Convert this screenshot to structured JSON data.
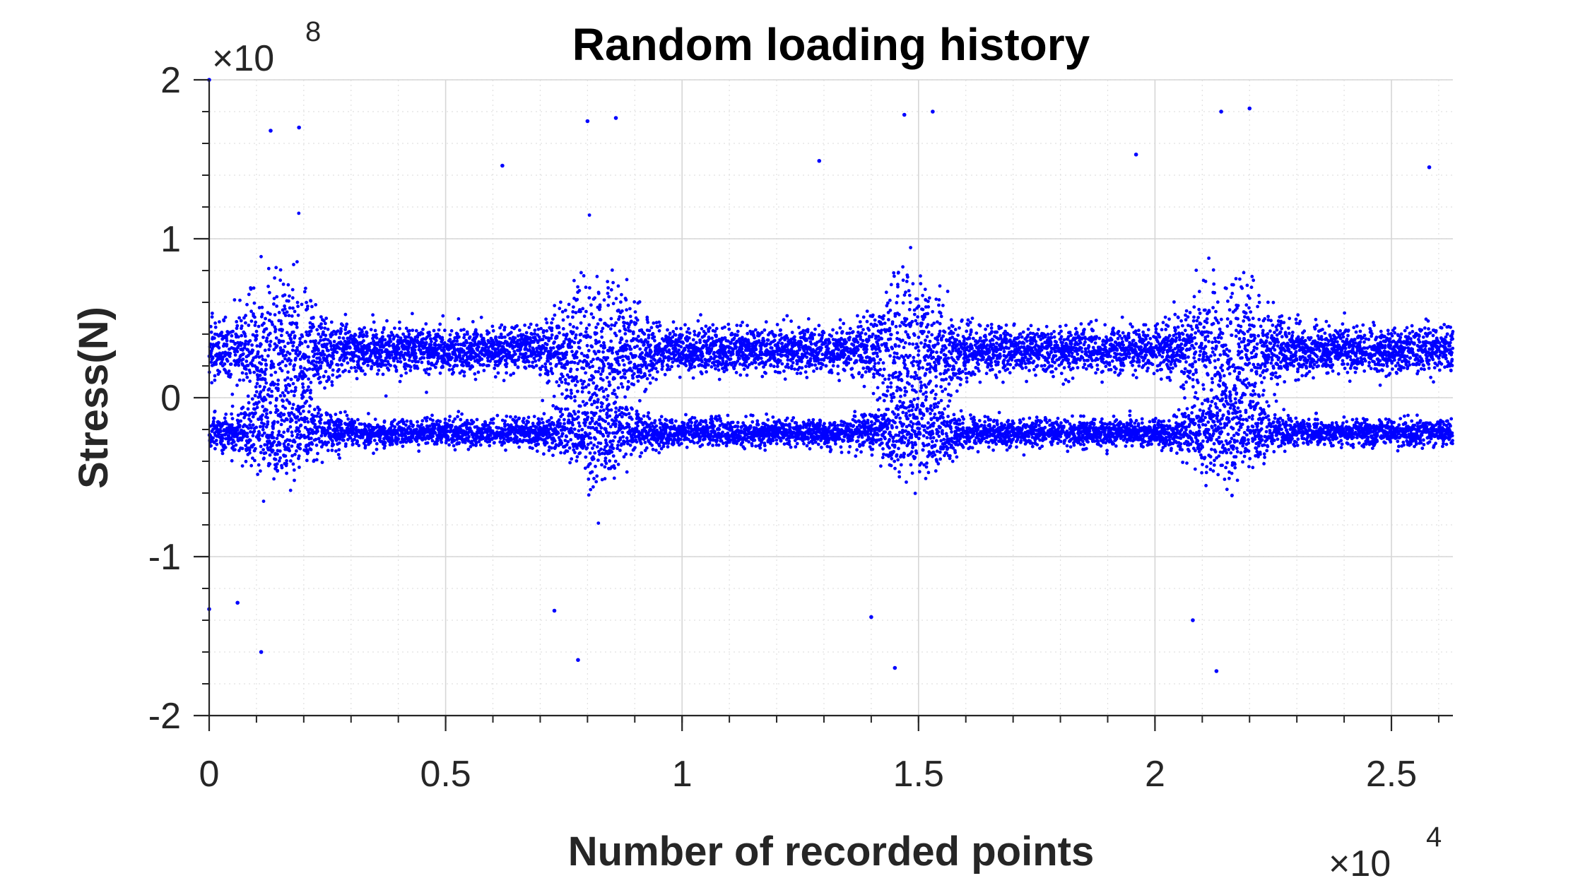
{
  "chart_data": {
    "type": "scatter",
    "title": "Random loading history",
    "xlabel": "Number of recorded points",
    "ylabel": "Stress(N)",
    "x_exponent_label": "×10",
    "x_exponent_power": "4",
    "y_exponent_label": "×10",
    "y_exponent_power": "8",
    "xlim": [
      0,
      26300
    ],
    "ylim": [
      -200000000,
      200000000
    ],
    "x_scale_factor": 10000,
    "y_scale_factor": 100000000,
    "x_ticks": [
      0,
      5000,
      10000,
      15000,
      20000,
      25000
    ],
    "x_tick_labels": [
      "0",
      "0.5",
      "1",
      "1.5",
      "2",
      "2.5"
    ],
    "y_ticks": [
      -200000000,
      -100000000,
      0,
      100000000,
      200000000
    ],
    "y_tick_labels": [
      "-2",
      "-1",
      "0",
      "1",
      "2"
    ],
    "grid": true,
    "minor_grid": true,
    "series": [
      {
        "marker": "dot",
        "color": "#0000ff",
        "description_n_points": 26300,
        "upper_band_center": 30000000,
        "upper_band_spread": 20000000,
        "lower_band_center": -22000000,
        "lower_band_spread": 12000000,
        "notable_points": [
          {
            "x": 0,
            "y": 200000000
          },
          {
            "x": 1100,
            "y": -160000000
          },
          {
            "x": 1300,
            "y": 168000000
          },
          {
            "x": 1900,
            "y": 170000000
          },
          {
            "x": 7800,
            "y": -165000000
          },
          {
            "x": 8000,
            "y": 174000000
          },
          {
            "x": 8600,
            "y": 176000000
          },
          {
            "x": 14500,
            "y": -170000000
          },
          {
            "x": 14700,
            "y": 178000000
          },
          {
            "x": 15300,
            "y": 180000000
          },
          {
            "x": 21300,
            "y": -172000000
          },
          {
            "x": 21400,
            "y": 180000000
          },
          {
            "x": 22000,
            "y": 182000000
          },
          {
            "x": 14000,
            "y": -138000000
          },
          {
            "x": 20800,
            "y": -140000000
          },
          {
            "x": 7300,
            "y": -134000000
          },
          {
            "x": 0,
            "y": -133000000
          },
          {
            "x": 600,
            "y": -129000000
          },
          {
            "x": 12900,
            "y": 149000000
          },
          {
            "x": 19600,
            "y": 153000000
          },
          {
            "x": 6200,
            "y": 146000000
          },
          {
            "x": 25800,
            "y": 145000000
          }
        ]
      }
    ]
  },
  "colors": {
    "series": "#0000ff",
    "axis": "#262626",
    "grid": "#e0e0e0"
  }
}
